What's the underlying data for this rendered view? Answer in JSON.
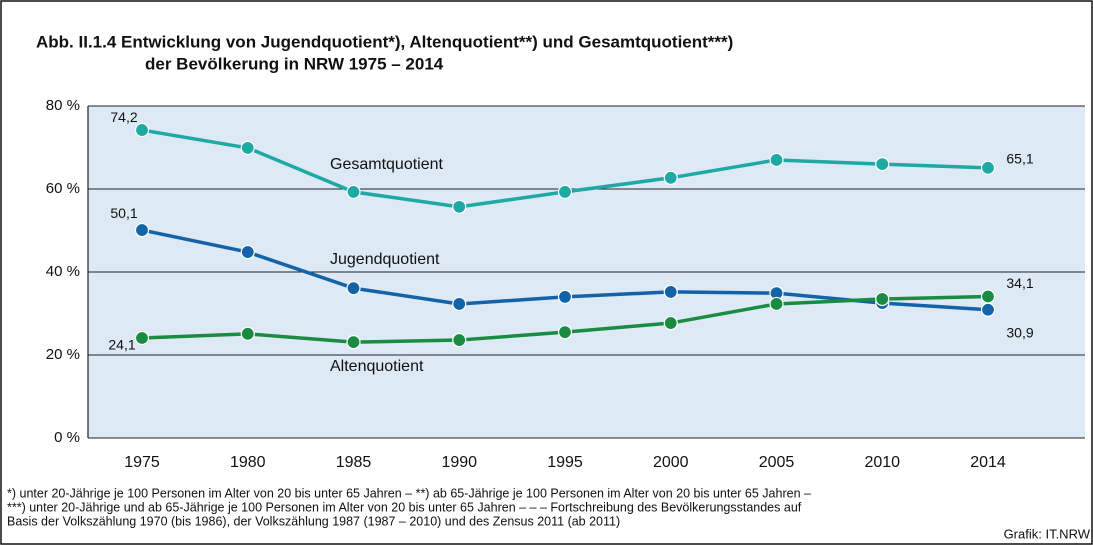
{
  "chart_data": {
    "type": "line",
    "title": "Abb. II.1.4   Entwicklung von Jugendquotient*), Altenquotient**) und Gesamtquotient***)",
    "subtitle": "der Bevölkerung in NRW 1975 – 2014",
    "categories": [
      "1975",
      "1980",
      "1985",
      "1990",
      "1995",
      "2000",
      "2005",
      "2010",
      "2014"
    ],
    "series": [
      {
        "name": "Gesamtquotient",
        "color": "#1ea9a4",
        "values": [
          74.2,
          69.9,
          59.3,
          55.7,
          59.3,
          62.7,
          67.0,
          66.0,
          65.1
        ],
        "value_labels": [
          "74,2",
          null,
          null,
          null,
          null,
          null,
          null,
          null,
          "65,1"
        ]
      },
      {
        "name": "Jugendquotient",
        "color": "#1463a8",
        "values": [
          50.1,
          44.8,
          36.1,
          32.3,
          34.0,
          35.2,
          34.9,
          32.5,
          30.9
        ],
        "value_labels": [
          "50,1",
          null,
          null,
          null,
          null,
          null,
          null,
          null,
          "30,9"
        ]
      },
      {
        "name": "Altenquotient",
        "color": "#1a8c42",
        "values": [
          24.1,
          25.1,
          23.1,
          23.6,
          25.5,
          27.7,
          32.3,
          33.5,
          34.1
        ],
        "value_labels": [
          "24,1",
          null,
          null,
          null,
          null,
          null,
          null,
          null,
          "34,1"
        ]
      }
    ],
    "ylim": [
      0,
      80
    ],
    "yticks": [
      {
        "value": 0,
        "label": "0 %"
      },
      {
        "value": 20,
        "label": "20 %"
      },
      {
        "value": 40,
        "label": "40 %"
      },
      {
        "value": 60,
        "label": "60 %"
      },
      {
        "value": 80,
        "label": "80 %"
      }
    ],
    "grid": true,
    "footnotes": [
      "*) unter 20-Jährige je 100 Personen im Alter von 20 bis unter 65 Jahren – **) ab 65-Jährige je 100 Personen im Alter von 20 bis unter 65 Jahren –",
      "***) unter 20-Jährige und ab 65-Jährige je 100 Personen im Alter von 20 bis unter 65 Jahren – – – Fortschreibung des Bevölkerungsstandes auf",
      "Basis der Volkszählung 1970 (bis 1986), der Volkszählung 1987 (1987 – 2010) und des Zensus 2011 (ab 2011)"
    ],
    "source": "Grafik: IT.NRW"
  }
}
